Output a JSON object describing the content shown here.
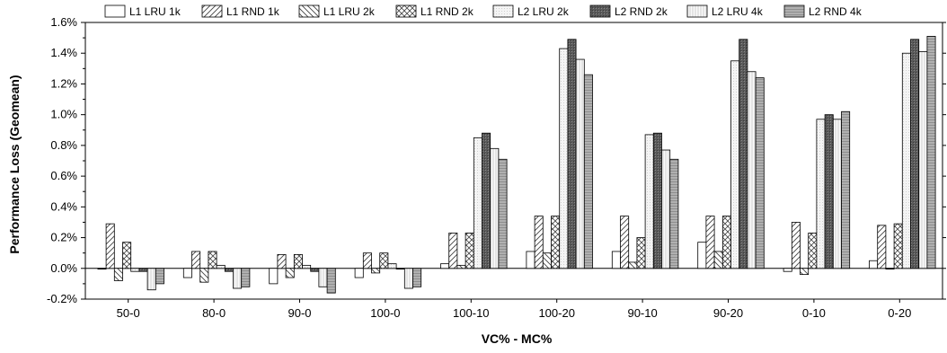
{
  "chart_data": {
    "type": "bar",
    "title": "",
    "xlabel": "VC% - MC%",
    "ylabel": "Performance Loss (Geomean)",
    "ylim": [
      -0.2,
      1.6
    ],
    "yticks": [
      -0.2,
      0.0,
      0.2,
      0.4,
      0.6,
      0.8,
      1.0,
      1.2,
      1.4,
      1.6
    ],
    "ytick_labels": [
      "-0.2%",
      "0.0%",
      "0.2%",
      "0.4%",
      "0.6%",
      "0.8%",
      "1.0%",
      "1.2%",
      "1.4%",
      "1.6%"
    ],
    "y_unit": "%",
    "grid": false,
    "legend_position": "top",
    "categories": [
      "50-0",
      "80-0",
      "90-0",
      "100-0",
      "100-10",
      "100-20",
      "90-10",
      "90-20",
      "0-10",
      "0-20"
    ],
    "series": [
      {
        "name": "L1 LRU 1k",
        "pattern": "plain",
        "values": [
          0.0,
          -0.06,
          -0.1,
          -0.06,
          0.03,
          0.11,
          0.11,
          0.17,
          -0.02,
          0.05
        ]
      },
      {
        "name": "L1 RND 1k",
        "pattern": "diag-fwd",
        "values": [
          0.29,
          0.11,
          0.09,
          0.1,
          0.23,
          0.34,
          0.34,
          0.34,
          0.3,
          0.28
        ]
      },
      {
        "name": "L1 LRU 2k",
        "pattern": "diag-back",
        "values": [
          -0.08,
          -0.09,
          -0.06,
          -0.03,
          0.02,
          0.1,
          0.04,
          0.11,
          -0.04,
          0.0
        ]
      },
      {
        "name": "L1 RND 2k",
        "pattern": "crosshatch",
        "values": [
          0.17,
          0.11,
          0.09,
          0.1,
          0.23,
          0.34,
          0.2,
          0.34,
          0.23,
          0.29
        ]
      },
      {
        "name": "L2 LRU 2k",
        "pattern": "light-dots",
        "values": [
          -0.02,
          0.02,
          0.02,
          0.03,
          0.85,
          1.43,
          0.87,
          1.35,
          0.97,
          1.4
        ]
      },
      {
        "name": "L2 RND 2k",
        "pattern": "dark",
        "values": [
          -0.02,
          -0.02,
          -0.02,
          0.0,
          0.88,
          1.49,
          0.88,
          1.49,
          1.0,
          1.49
        ]
      },
      {
        "name": "L2 LRU 4k",
        "pattern": "light-grid",
        "values": [
          -0.14,
          -0.13,
          -0.12,
          -0.13,
          0.78,
          1.36,
          0.77,
          1.28,
          0.97,
          1.41
        ]
      },
      {
        "name": "L2 RND 4k",
        "pattern": "medium",
        "values": [
          -0.1,
          -0.12,
          -0.16,
          -0.12,
          0.71,
          1.26,
          0.71,
          1.24,
          1.02,
          1.51
        ]
      }
    ]
  }
}
